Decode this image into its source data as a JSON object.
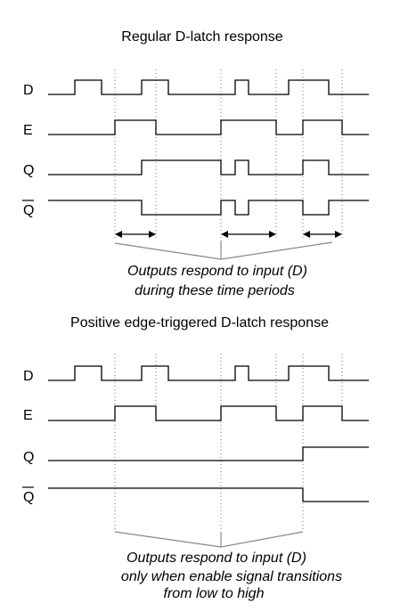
{
  "regular": {
    "title": "Regular D-latch response",
    "labels": {
      "d": "D",
      "e": "E",
      "q": "Q",
      "qbar": "Q"
    },
    "note_line1": "Outputs respond to input (D)",
    "note_line2": "during these time periods"
  },
  "edge": {
    "title": "Positive edge-triggered D-latch response",
    "labels": {
      "d": "D",
      "e": "E",
      "q": "Q",
      "qbar": "Q"
    },
    "note_line1": "Outputs respond to input (D)",
    "note_line2": "only when enable signal transitions",
    "note_line3": "from low to high"
  }
}
